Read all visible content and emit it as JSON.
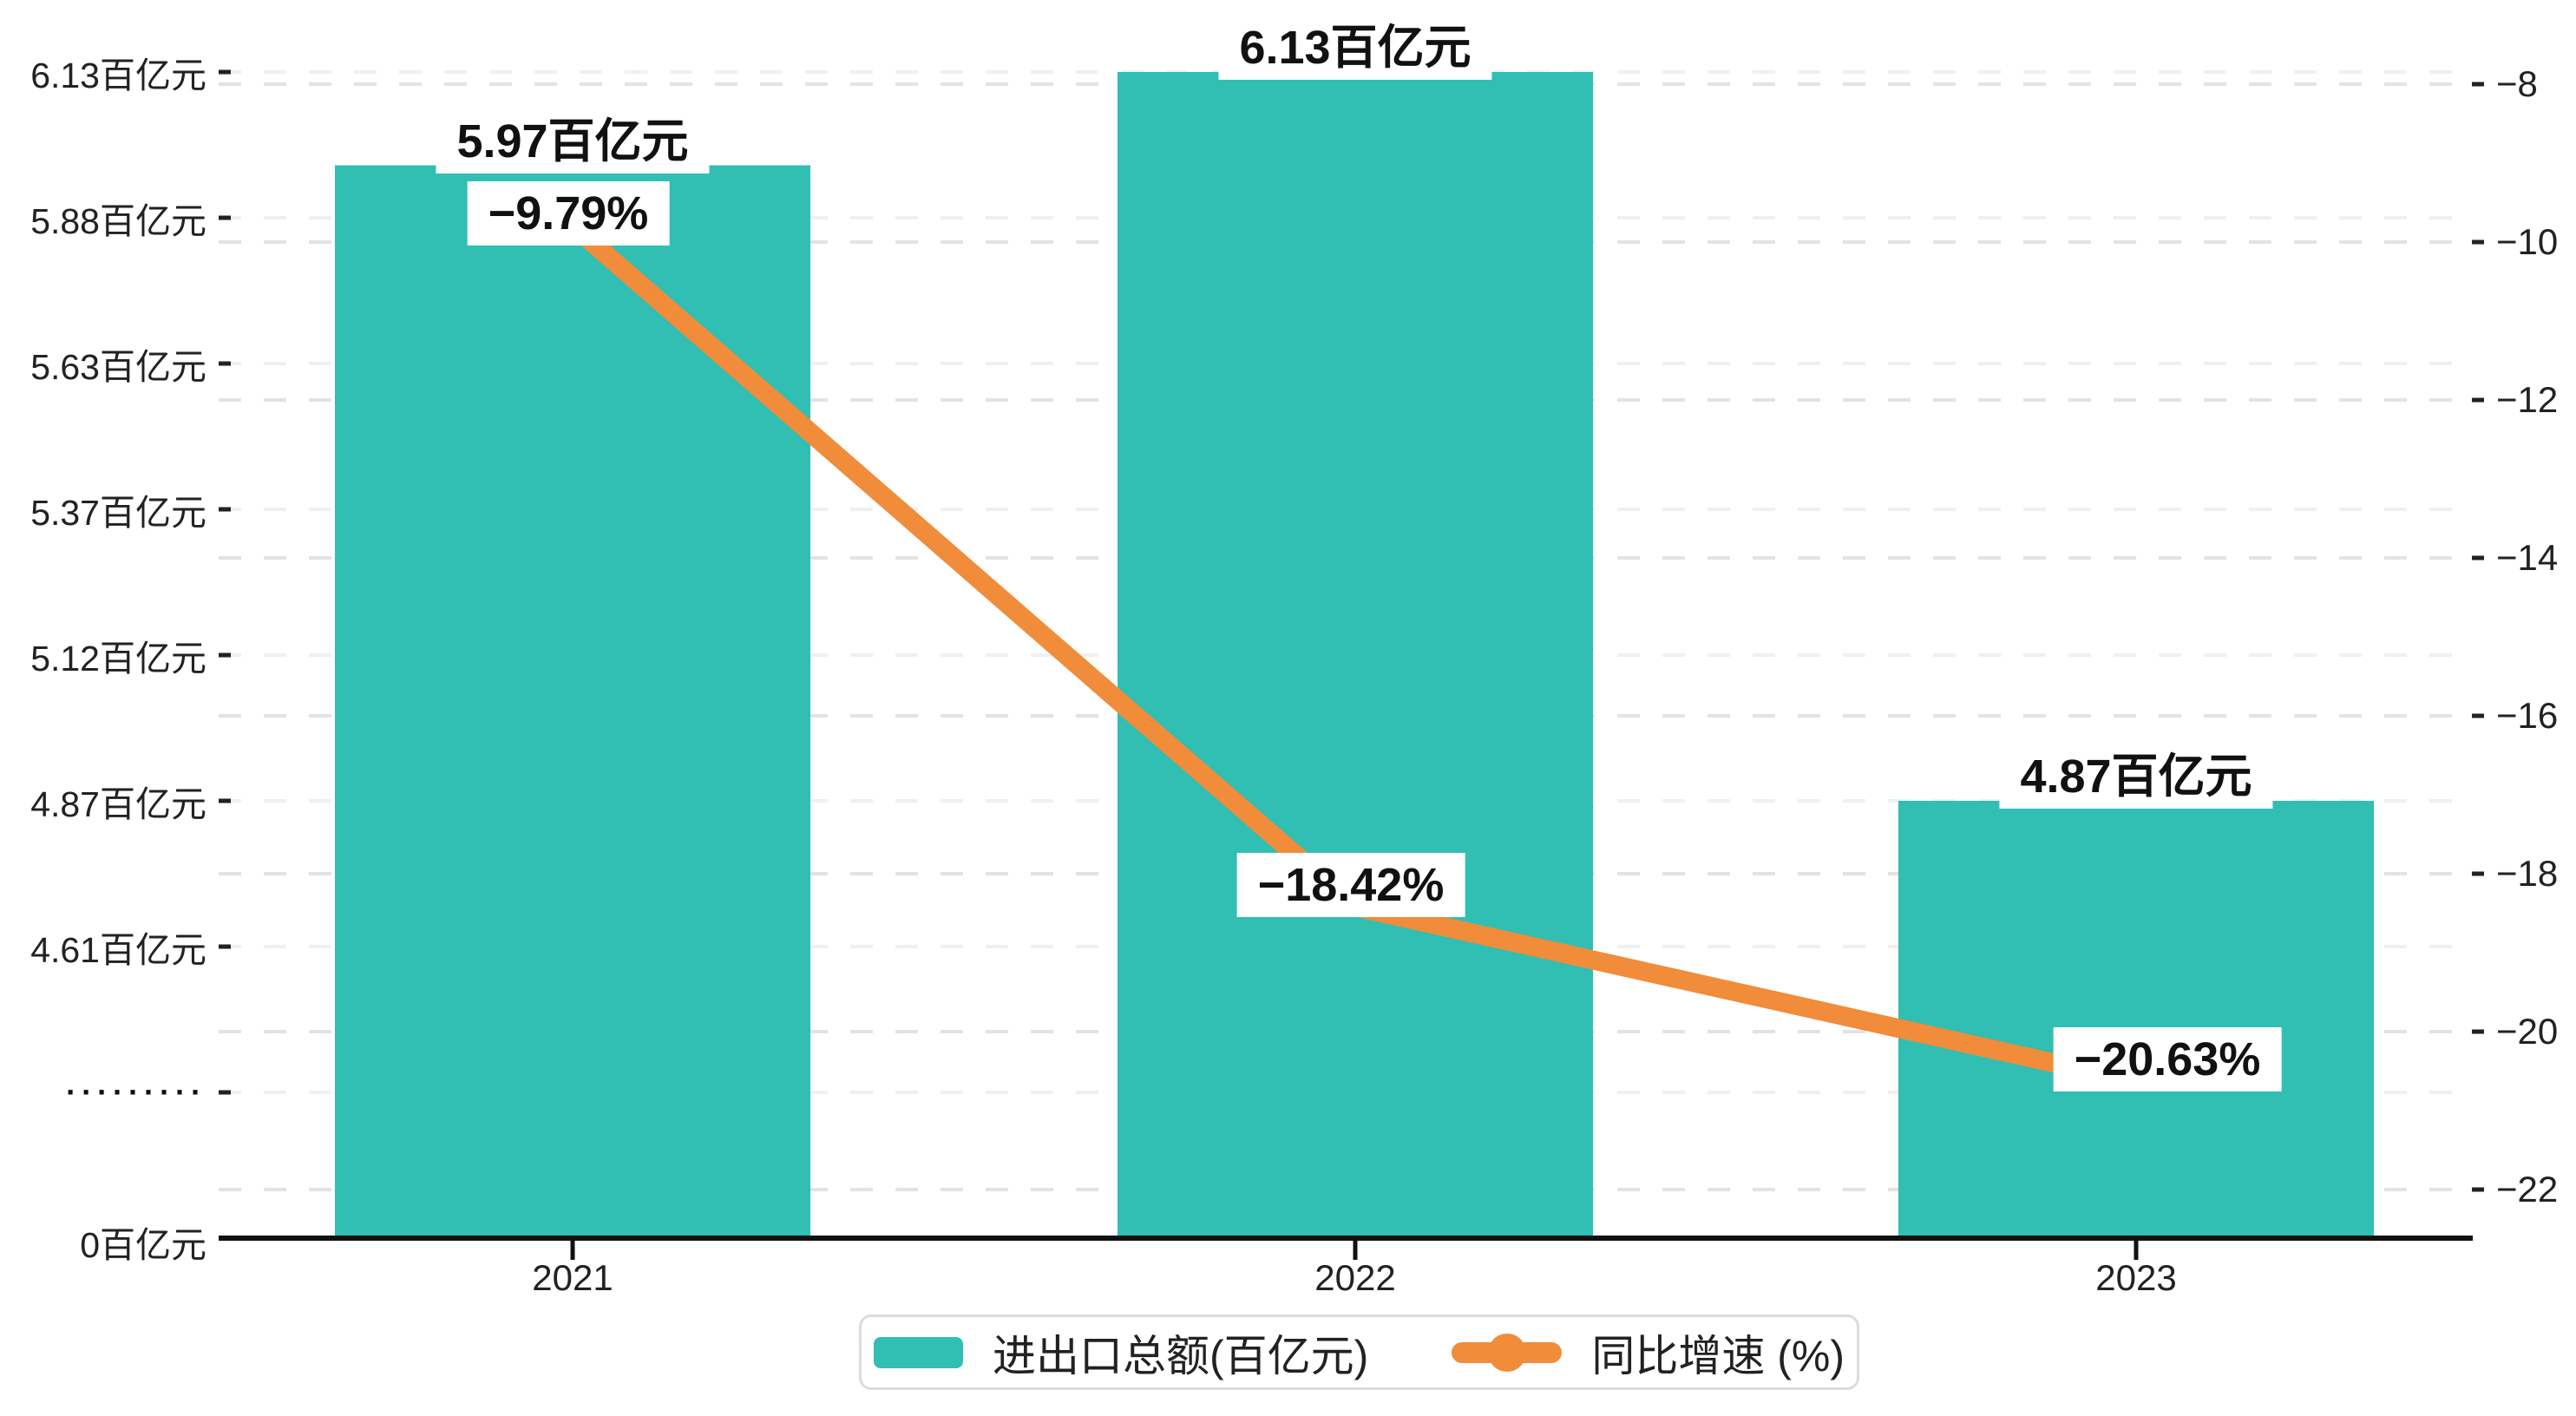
{
  "chart_data": {
    "type": "bar",
    "combo": "bar+line, dual y-axis",
    "categories": [
      "2021",
      "2022",
      "2023"
    ],
    "series": [
      {
        "name": "进出口总额(百亿元)",
        "type": "bar",
        "axis": "left",
        "color": "#31beb3",
        "values": [
          5.97,
          6.13,
          4.87
        ],
        "data_labels": [
          "5.97百亿元",
          "6.13百亿元",
          "4.87百亿元"
        ]
      },
      {
        "name": "同比增速 (%)",
        "type": "line",
        "axis": "right",
        "color": "#f18c3a",
        "values": [
          -9.79,
          -18.42,
          -20.63
        ],
        "data_labels": [
          "−9.79%",
          "−18.42%",
          "−20.63%"
        ]
      }
    ],
    "left_axis": {
      "unit": "百亿元",
      "axis_break": true,
      "tick_labels": [
        "6.13百亿元",
        "5.88百亿元",
        "5.63百亿元",
        "5.37百亿元",
        "5.12百亿元",
        "4.87百亿元",
        "4.61百亿元",
        "·········",
        "0百亿元"
      ],
      "tick_values": [
        6.13,
        5.88,
        5.63,
        5.37,
        5.12,
        4.87,
        4.61,
        null,
        0
      ]
    },
    "right_axis": {
      "tick_labels": [
        "−8",
        "−10",
        "−12",
        "−14",
        "−16",
        "−18",
        "−20",
        "−22"
      ],
      "tick_values": [
        -8,
        -10,
        -12,
        -14,
        -16,
        -18,
        -20,
        -22
      ]
    },
    "x_axis": {
      "tick_labels": [
        "2021",
        "2022",
        "2023"
      ]
    },
    "grid": "horizontal dashed, both axes interleaved",
    "legend_position": "bottom-center",
    "legend": [
      {
        "label": "进出口总额(百亿元)",
        "marker": "bar-swatch",
        "color": "#31beb3"
      },
      {
        "label": "同比增速 (%)",
        "marker": "line-dot",
        "color": "#f18c3a"
      }
    ],
    "colors": {
      "bar": "#31beb3",
      "line": "#f18c3a",
      "axis_text": "#222222",
      "data_label_text": "#111111",
      "label_bg": "#ffffff",
      "grid_right_axis": "#e3e3e3",
      "grid_left_axis": "#f0f0f0",
      "axis_line": "#111111",
      "legend_border": "#dcdcdc",
      "background": "#ffffff"
    }
  }
}
